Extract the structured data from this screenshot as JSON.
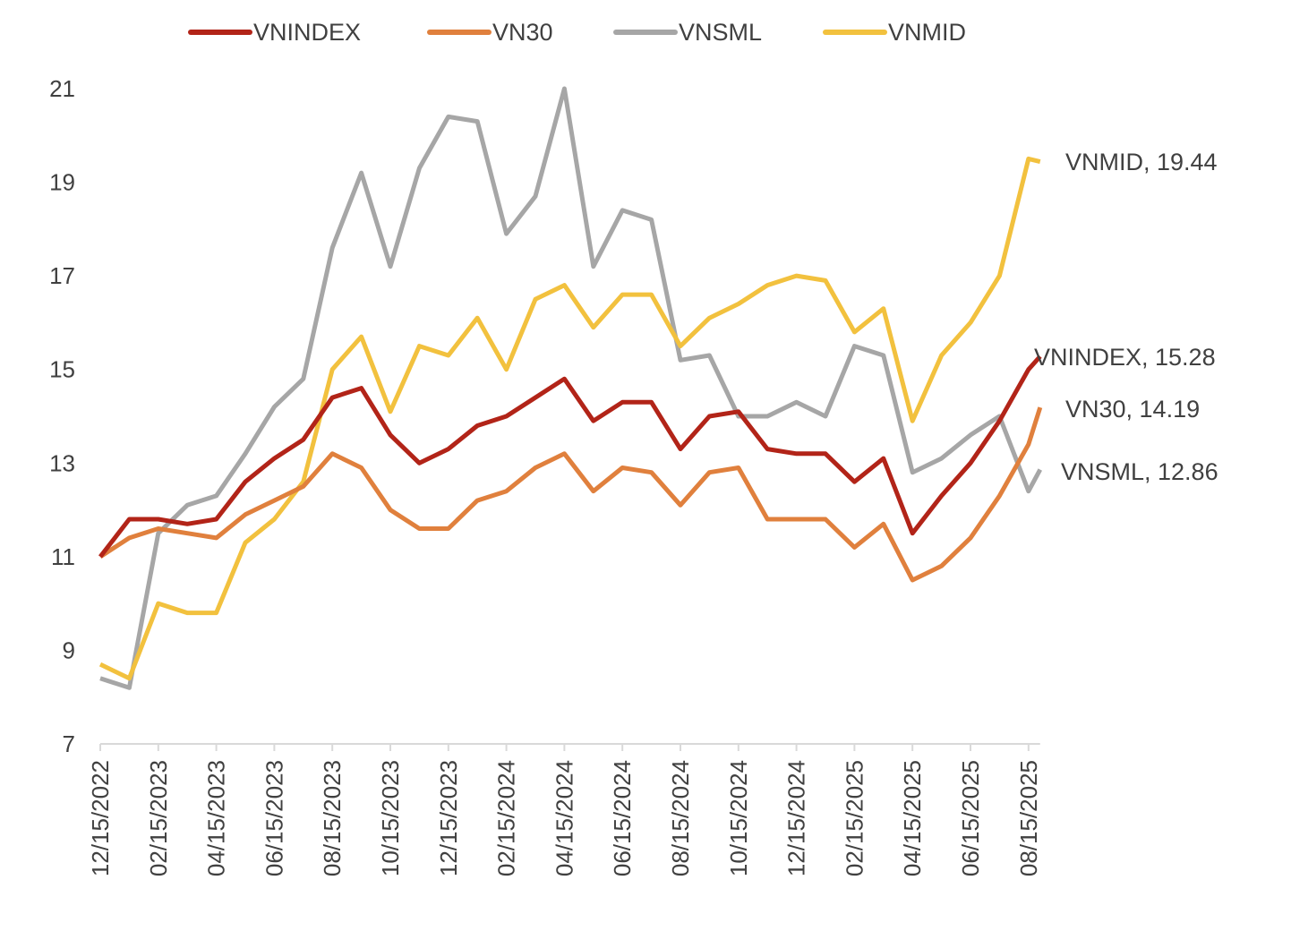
{
  "chart_data": {
    "type": "line",
    "title": "",
    "xlabel": "",
    "ylabel": "",
    "ylim": [
      7,
      21
    ],
    "yticks": [
      7,
      9,
      11,
      13,
      15,
      17,
      19,
      21
    ],
    "xtick_labels": [
      "12/15/2022",
      "02/15/2023",
      "04/15/2023",
      "06/15/2023",
      "08/15/2023",
      "10/15/2023",
      "12/15/2023",
      "02/15/2024",
      "04/15/2024",
      "06/15/2024",
      "08/15/2024",
      "10/15/2024",
      "12/15/2024",
      "02/15/2025",
      "04/15/2025",
      "06/15/2025",
      "08/15/2025"
    ],
    "x_months_from_start": [
      0,
      1,
      2,
      3,
      4,
      5,
      6,
      7,
      8,
      9,
      10,
      11,
      12,
      13,
      14,
      15,
      16,
      17,
      18,
      19,
      20,
      21,
      22,
      23,
      24,
      25,
      26,
      27,
      28,
      29,
      30,
      31,
      32,
      32.4
    ],
    "grid": false,
    "legend_position": "top",
    "series": [
      {
        "name": "VNINDEX",
        "color": "#B22418",
        "end_label": "VNINDEX, 15.28",
        "values": [
          11.0,
          11.8,
          11.8,
          11.7,
          11.8,
          12.6,
          13.1,
          13.5,
          14.4,
          14.6,
          13.6,
          13.0,
          13.3,
          13.8,
          14.0,
          14.4,
          14.8,
          13.9,
          14.3,
          14.3,
          13.3,
          14.0,
          14.1,
          13.3,
          13.2,
          13.2,
          12.6,
          13.1,
          11.5,
          12.3,
          13.0,
          13.9,
          15.0,
          15.28
        ]
      },
      {
        "name": "VN30",
        "color": "#E0803D",
        "end_label": "VN30, 14.19",
        "values": [
          11.0,
          11.4,
          11.6,
          11.5,
          11.4,
          11.9,
          12.2,
          12.5,
          13.2,
          12.9,
          12.0,
          11.6,
          11.6,
          12.2,
          12.4,
          12.9,
          13.2,
          12.4,
          12.9,
          12.8,
          12.1,
          12.8,
          12.9,
          11.8,
          11.8,
          11.8,
          11.2,
          11.7,
          10.5,
          10.8,
          11.4,
          12.3,
          13.4,
          14.19
        ]
      },
      {
        "name": "VNSML",
        "color": "#A6A6A6",
        "end_label": "VNSML, 12.86",
        "values": [
          8.4,
          8.2,
          11.5,
          12.1,
          12.3,
          13.2,
          14.2,
          14.8,
          17.6,
          19.2,
          17.2,
          19.3,
          20.4,
          20.3,
          17.9,
          18.7,
          21.0,
          17.2,
          18.4,
          18.2,
          15.2,
          15.3,
          14.0,
          14.0,
          14.3,
          14.0,
          15.5,
          15.3,
          12.8,
          13.1,
          13.6,
          14.0,
          12.4,
          12.86
        ]
      },
      {
        "name": "VNMID",
        "color": "#F2C13E",
        "end_label": "VNMID, 19.44",
        "values": [
          8.7,
          8.4,
          10.0,
          9.8,
          9.8,
          11.3,
          11.8,
          12.6,
          15.0,
          15.7,
          14.1,
          15.5,
          15.3,
          16.1,
          15.0,
          16.5,
          16.8,
          15.9,
          16.6,
          16.6,
          15.5,
          16.1,
          16.4,
          16.8,
          17.0,
          16.9,
          15.8,
          16.3,
          13.9,
          15.3,
          16.0,
          17.0,
          19.5,
          19.44
        ]
      }
    ]
  }
}
